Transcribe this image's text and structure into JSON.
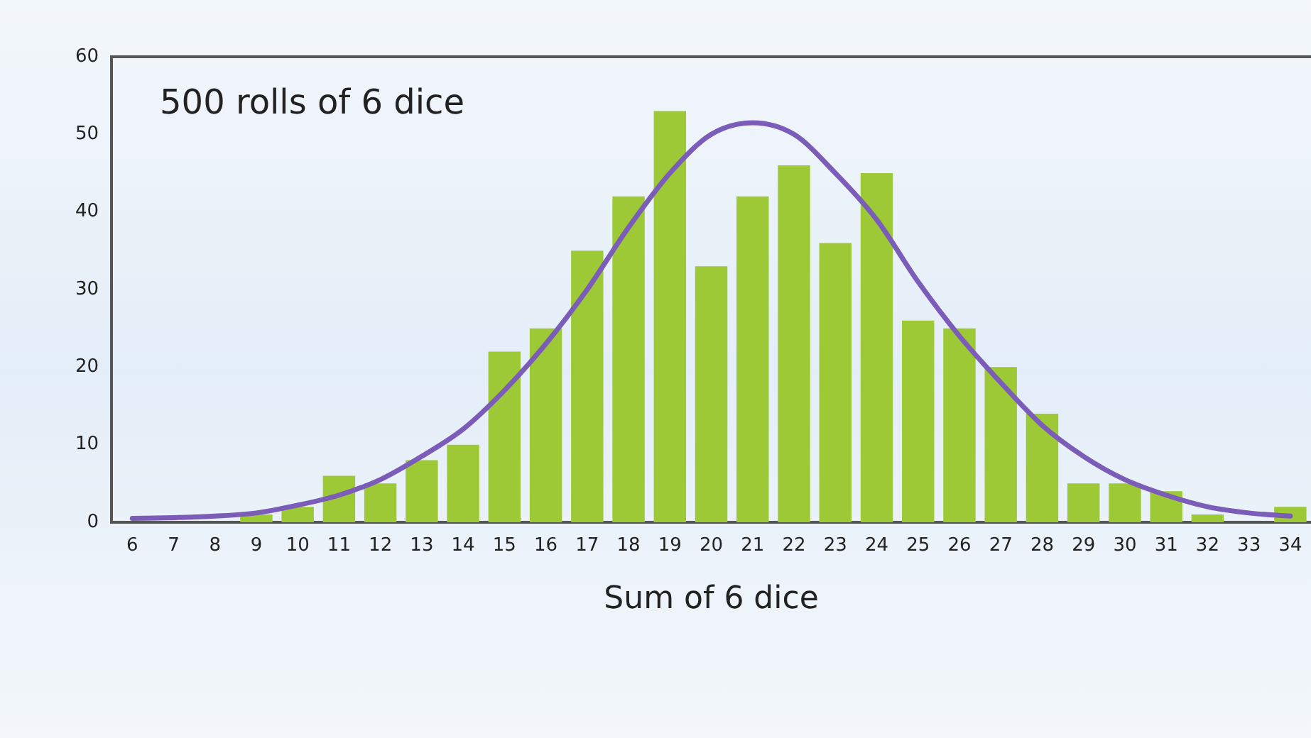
{
  "chart_data": {
    "type": "bar",
    "xlabel": "Sum of 6 dice",
    "annotations": [
      "500 rolls of 6 dice"
    ],
    "categories": [
      "6",
      "7",
      "8",
      "9",
      "10",
      "11",
      "12",
      "13",
      "14",
      "15",
      "16",
      "17",
      "18",
      "19",
      "20",
      "21",
      "22",
      "23",
      "24",
      "25",
      "26",
      "27",
      "28",
      "29",
      "30",
      "31",
      "32",
      "33",
      "34"
    ],
    "series": [
      {
        "color": "#9ec936",
        "values": [
          0,
          0,
          0,
          1,
          2,
          6,
          5,
          8,
          10,
          22,
          25,
          35,
          42,
          53,
          33,
          42,
          46,
          36,
          45,
          26,
          25,
          20,
          14,
          5,
          5,
          4,
          1,
          0,
          2
        ]
      },
      {
        "type": "line",
        "color": "#7b5cb8",
        "values": [
          0.5,
          0.6,
          0.8,
          1.2,
          2.2,
          3.5,
          5.5,
          8.5,
          12,
          17,
          23,
          30,
          38,
          45,
          50,
          51.5,
          50,
          45,
          39,
          31,
          24,
          18,
          12.5,
          8.5,
          5.5,
          3.5,
          2,
          1.2,
          0.8
        ]
      }
    ],
    "ylim": [
      0,
      60
    ],
    "yticks": [
      0,
      10,
      20,
      30,
      40,
      50,
      60
    ],
    "grid": false,
    "legend": false,
    "marker": "none",
    "line_style": "solid"
  }
}
